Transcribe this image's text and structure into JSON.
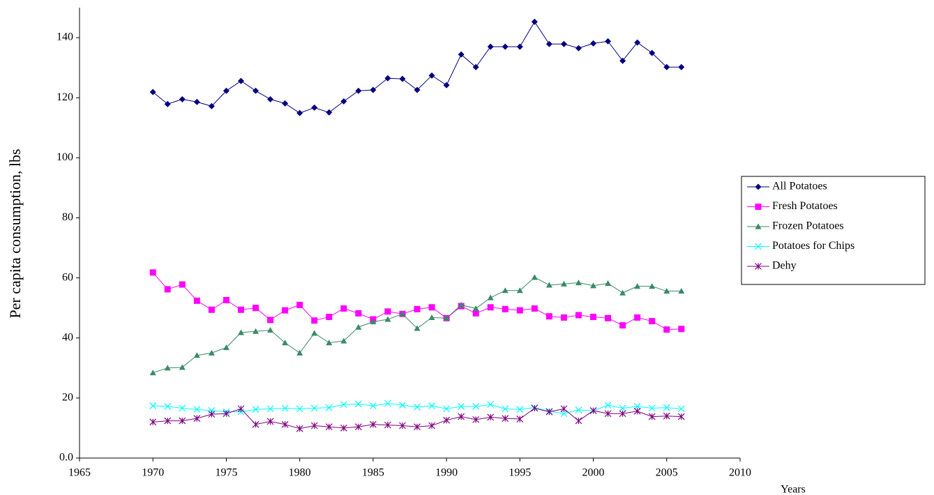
{
  "chart_data": {
    "type": "line",
    "ylabel": "Per capita consumption, lbs",
    "xlabel": "Years",
    "x": [
      1970,
      1971,
      1972,
      1973,
      1974,
      1975,
      1976,
      1977,
      1978,
      1979,
      1980,
      1981,
      1982,
      1983,
      1984,
      1985,
      1986,
      1987,
      1988,
      1989,
      1990,
      1991,
      1992,
      1993,
      1994,
      1995,
      1996,
      1997,
      1998,
      1999,
      2000,
      2001,
      2002,
      2003,
      2004,
      2005,
      2006
    ],
    "xlim": [
      1965,
      2010
    ],
    "xticks": [
      1965,
      1970,
      1975,
      1980,
      1985,
      1990,
      1995,
      2000,
      2005,
      2010
    ],
    "ylim": [
      0,
      150
    ],
    "yticks": [
      {
        "value": 0,
        "label": "0.0"
      },
      20,
      40,
      60,
      80,
      100,
      120,
      140
    ],
    "legend": "right",
    "grid": false,
    "series": [
      {
        "name": "All Potatoes",
        "color": "#000080",
        "marker": "diamond",
        "values": [
          121.9,
          117.9,
          119.5,
          118.6,
          117.2,
          122.3,
          125.6,
          122.3,
          119.5,
          118.1,
          114.9,
          116.7,
          115.1,
          118.8,
          122.3,
          122.6,
          126.5,
          126.3,
          122.6,
          127.4,
          124.2,
          134.4,
          130.2,
          137,
          137,
          137,
          145.3,
          137.9,
          137.9,
          136.5,
          138.1,
          138.8,
          132.3,
          138.4,
          134.9,
          130.2,
          130.2
        ]
      },
      {
        "name": "Fresh Potatoes",
        "color": "#ff00ff",
        "marker": "square",
        "values": [
          61.8,
          56.2,
          57.8,
          52.4,
          49.4,
          52.6,
          49.4,
          50,
          46,
          49.2,
          51,
          45.8,
          47,
          49.8,
          48.2,
          46.2,
          48.8,
          48,
          49.6,
          50.2,
          46.6,
          50.6,
          48.2,
          50.2,
          49.6,
          49.2,
          49.8,
          47.2,
          46.8,
          47.6,
          47,
          46.6,
          44.2,
          46.8,
          45.6,
          42.8,
          43
        ]
      },
      {
        "name": "Frozen Potatoes",
        "color": "#3a8a66",
        "marker": "triangle",
        "values": [
          28.4,
          30,
          30.2,
          34.2,
          35,
          36.8,
          41.8,
          42.2,
          42.6,
          38.4,
          35,
          41.6,
          38.4,
          39,
          43.6,
          45.4,
          46.2,
          48,
          43.2,
          46.8,
          46.6,
          51,
          49.8,
          53.4,
          55.8,
          55.8,
          60.2,
          57.6,
          58,
          58.4,
          57.4,
          58.2,
          55,
          57.2,
          57.2,
          55.6,
          55.6
        ]
      },
      {
        "name": "Potatoes for Chips",
        "color": "#00ffff",
        "marker": "x",
        "values": [
          17.4,
          17.2,
          16.6,
          16.2,
          15.8,
          15.4,
          15.4,
          16.2,
          16.4,
          16.6,
          16.4,
          16.6,
          16.8,
          17.8,
          18,
          17.4,
          18.2,
          17.6,
          17,
          17.4,
          16.4,
          17.2,
          17.2,
          17.8,
          16.4,
          16.2,
          16.8,
          15.6,
          14.8,
          16,
          15.8,
          17.6,
          16.6,
          17.2,
          16.6,
          16.8,
          16.4
        ]
      },
      {
        "name": "Dehy",
        "color": "#800080",
        "marker": "star",
        "values": [
          12,
          12.4,
          12.4,
          13.2,
          14.6,
          14.8,
          16.4,
          11.2,
          12.2,
          11.2,
          9.8,
          10.8,
          10.4,
          10,
          10.4,
          11.2,
          11,
          10.8,
          10.4,
          10.8,
          12.6,
          13.8,
          12.8,
          13.6,
          13.2,
          13,
          16.6,
          15.4,
          16.4,
          12.4,
          15.8,
          14.8,
          14.8,
          15.6,
          13.8,
          14,
          13.8
        ]
      }
    ]
  }
}
